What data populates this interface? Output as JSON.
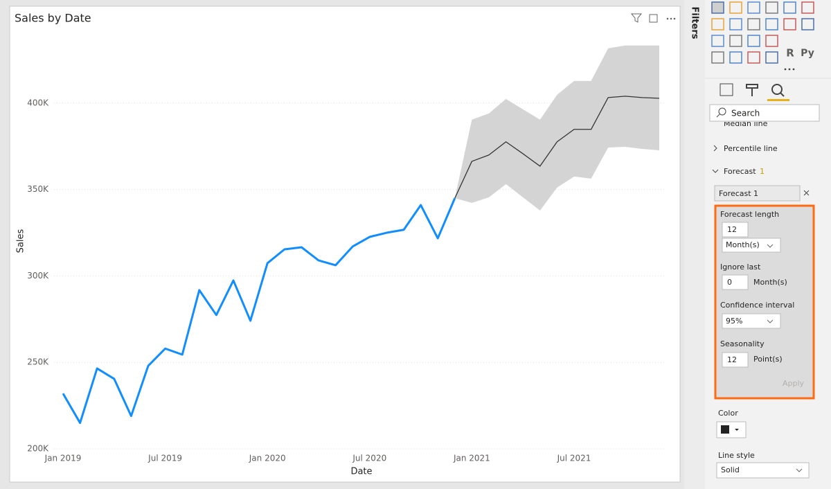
{
  "chart_data": {
    "type": "line",
    "title": "Sales by Date",
    "x_label": "Date",
    "y_label": "Sales",
    "x": [
      "2019-01",
      "2019-02",
      "2019-03",
      "2019-04",
      "2019-05",
      "2019-06",
      "2019-07",
      "2019-08",
      "2019-09",
      "2019-10",
      "2019-11",
      "2019-12",
      "2020-01",
      "2020-02",
      "2020-03",
      "2020-04",
      "2020-05",
      "2020-06",
      "2020-07",
      "2020-08",
      "2020-09",
      "2020-10",
      "2020-11",
      "2020-12",
      "2021-01",
      "2021-02",
      "2021-03",
      "2021-04",
      "2021-05",
      "2021-06",
      "2021-07",
      "2021-08",
      "2021-09",
      "2021-10",
      "2021-11",
      "2021-12"
    ],
    "series": [
      {
        "color": "#118dff",
        "values": [
          232000,
          215000,
          246500,
          240500,
          219000,
          248000,
          258000,
          254500,
          291800,
          277400,
          297400,
          274100,
          307400,
          315400,
          316600,
          309000,
          306200,
          317000,
          322600,
          325000,
          326700,
          341000,
          321800,
          345000,
          null,
          null,
          null,
          null,
          null,
          null,
          null,
          null,
          null,
          null,
          null,
          null
        ]
      },
      {
        "color": "#333333",
        "values": [
          null,
          null,
          null,
          null,
          null,
          null,
          null,
          null,
          null,
          null,
          null,
          null,
          null,
          null,
          null,
          null,
          null,
          null,
          null,
          null,
          null,
          null,
          null,
          345000,
          366300,
          370000,
          377600,
          370700,
          363500,
          377600,
          384800,
          384800,
          403200,
          404000,
          403200,
          402800
        ]
      }
    ],
    "band": {
      "color": "#d4d4d4",
      "upper": [
        null,
        null,
        null,
        null,
        null,
        null,
        null,
        null,
        null,
        null,
        null,
        null,
        null,
        null,
        null,
        null,
        null,
        null,
        null,
        null,
        null,
        null,
        null,
        345000,
        390400,
        394000,
        402400,
        396400,
        390400,
        404800,
        412800,
        412800,
        431700,
        433300,
        433300,
        433300
      ],
      "lower": [
        null,
        null,
        null,
        null,
        null,
        null,
        null,
        null,
        null,
        null,
        null,
        null,
        null,
        null,
        null,
        null,
        null,
        null,
        null,
        null,
        null,
        null,
        null,
        345000,
        342300,
        345500,
        353100,
        345500,
        337900,
        351100,
        357500,
        356300,
        374300,
        374700,
        373500,
        372700
      ]
    },
    "ylim": [
      200000,
      440000
    ],
    "yticks": [
      {
        "value": 200000,
        "label": "200K"
      },
      {
        "value": 250000,
        "label": "250K"
      },
      {
        "value": 300000,
        "label": "300K"
      },
      {
        "value": 350000,
        "label": "350K"
      },
      {
        "value": 400000,
        "label": "400K"
      }
    ],
    "xticks": [
      {
        "value": "2019-01",
        "label": "Jan 2019"
      },
      {
        "value": "2019-07",
        "label": "Jul 2019"
      },
      {
        "value": "2020-01",
        "label": "Jan 2020"
      },
      {
        "value": "2020-07",
        "label": "Jul 2020"
      },
      {
        "value": "2021-01",
        "label": "Jan 2021"
      },
      {
        "value": "2021-07",
        "label": "Jul 2021"
      }
    ],
    "grid": true
  },
  "filters_pane": {
    "label": "Filters"
  },
  "visualizations_pane": {
    "icon_labels": [
      "R",
      "Py"
    ],
    "search": "Search",
    "sections": [
      "Median line",
      "Percentile line"
    ],
    "forecast": {
      "title": "Forecast",
      "count": "1",
      "name": "Forecast 1",
      "length_label": "Forecast length",
      "length": "12",
      "length_unit": "Month(s)",
      "ignore_label": "Ignore last",
      "ignore": "0",
      "ignore_unit": "Month(s)",
      "confidence_label": "Confidence interval",
      "confidence": "95%",
      "seasonality_label": "Seasonality",
      "seasonality": "12",
      "seasonality_unit": "Point(s)",
      "apply": "Apply"
    },
    "color_label": "Color",
    "line_style_label": "Line style",
    "line_style": "Solid"
  }
}
